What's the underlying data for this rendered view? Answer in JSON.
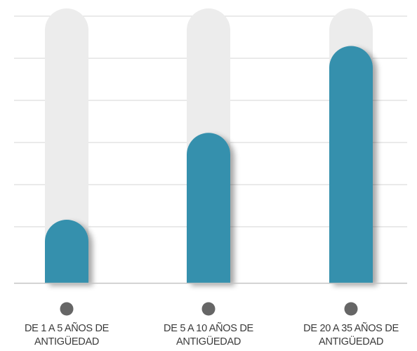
{
  "chart_data": {
    "type": "bar",
    "categories": [
      [
        "DE 1 A 5 AÑOS DE",
        "ANTIGÜEDAD"
      ],
      [
        "DE 5 A 10 AÑOS DE",
        "ANTIGÜEDAD"
      ],
      [
        "DE 20 A 35 AÑOS DE",
        "ANTIGÜEDAD"
      ]
    ],
    "values": [
      24,
      57,
      90
    ],
    "ylim": [
      0,
      100
    ],
    "grid": true,
    "colors": {
      "bar_fill": "#3590ad",
      "bar_track": "#ececec",
      "grid": "#d6d6d6",
      "axis": "#c4c4c4",
      "marker": "#666666"
    }
  }
}
